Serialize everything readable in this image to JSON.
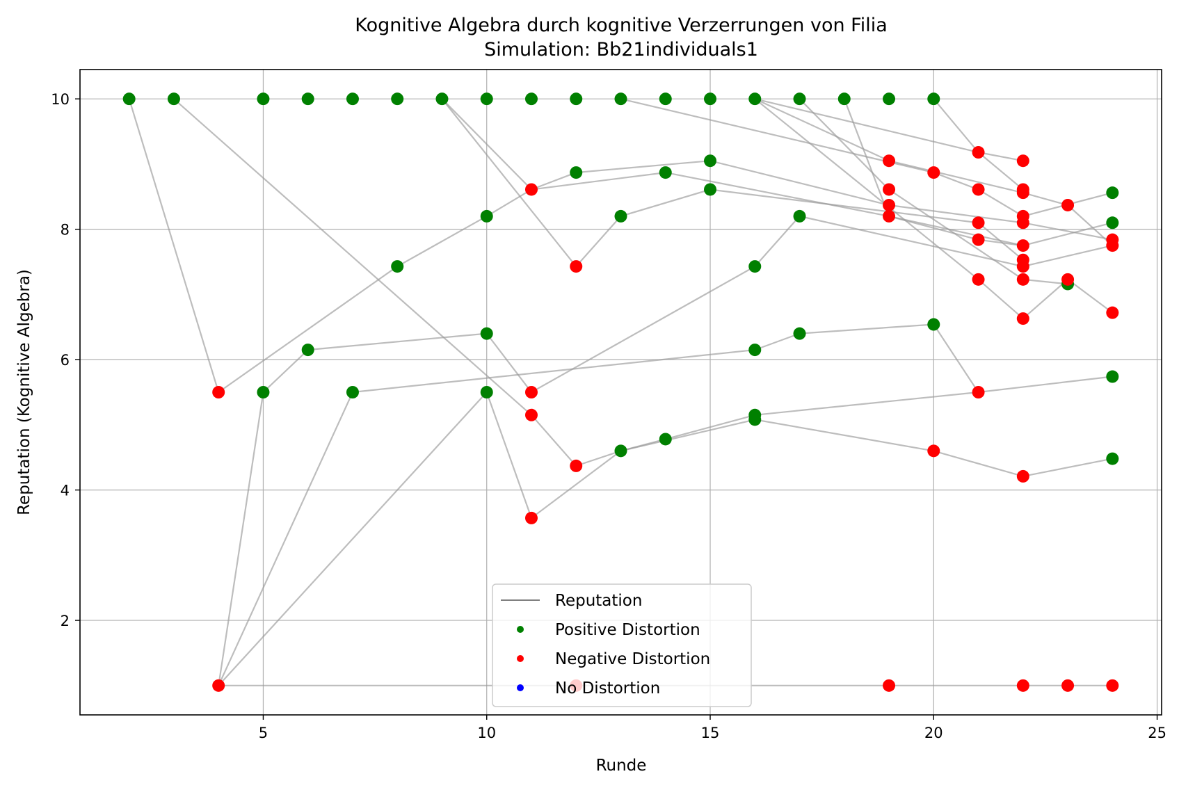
{
  "chart_data": {
    "type": "scatter",
    "title": "Kognitive Algebra durch kognitive Verzerrungen von Filia",
    "subtitle": "Simulation: Bb21individuals1",
    "xlabel": "Runde",
    "ylabel": "Reputation (Kognitive Algebra)",
    "xlim": [
      0.9,
      25.1
    ],
    "ylim": [
      0.55,
      10.45
    ],
    "xticks": [
      5,
      10,
      15,
      20,
      25
    ],
    "yticks": [
      2,
      4,
      6,
      8,
      10
    ],
    "grid": true,
    "legend_position": "lower center",
    "legend": [
      {
        "label": "Reputation",
        "kind": "line",
        "color": "#808080"
      },
      {
        "label": "Positive Distortion",
        "kind": "marker",
        "color": "#008000"
      },
      {
        "label": "Negative Distortion",
        "kind": "marker",
        "color": "#ff0000"
      },
      {
        "label": "No Distortion",
        "kind": "marker",
        "color": "#0000ff"
      }
    ],
    "colors": {
      "positive": "#008000",
      "negative": "#ff0000",
      "none": "#0000ff",
      "reputation": "#808080"
    },
    "series": [
      {
        "points": [
          [
            2,
            10
          ],
          [
            4,
            5.5
          ],
          [
            8,
            7.43
          ],
          [
            10,
            8.2
          ],
          [
            11,
            8.61
          ],
          [
            14,
            8.87
          ],
          [
            19,
            8.2
          ],
          [
            21,
            7.84
          ],
          [
            22,
            7.75
          ],
          [
            24,
            8.1
          ]
        ]
      },
      {
        "points": [
          [
            3,
            10
          ],
          [
            11,
            5.15
          ],
          [
            12,
            4.37
          ],
          [
            13,
            4.6
          ],
          [
            14,
            4.78
          ],
          [
            16,
            5.15
          ],
          [
            21,
            5.5
          ],
          [
            24,
            5.74
          ]
        ]
      },
      {
        "points": [
          [
            4,
            1
          ],
          [
            5,
            5.5
          ],
          [
            6,
            6.15
          ],
          [
            10,
            6.4
          ],
          [
            11,
            5.5
          ],
          [
            16,
            7.43
          ],
          [
            17,
            8.2
          ],
          [
            22,
            7.43
          ],
          [
            24,
            7.75
          ]
        ]
      },
      {
        "points": [
          [
            4,
            1
          ],
          [
            7,
            5.5
          ],
          [
            16,
            6.15
          ],
          [
            17,
            6.4
          ],
          [
            20,
            6.54
          ],
          [
            21,
            5.5
          ]
        ]
      },
      {
        "points": [
          [
            4,
            1
          ],
          [
            10,
            5.5
          ],
          [
            11,
            3.57
          ],
          [
            13,
            4.6
          ],
          [
            16,
            5.08
          ],
          [
            20,
            4.6
          ],
          [
            22,
            4.21
          ],
          [
            24,
            4.48
          ]
        ]
      },
      {
        "points": [
          [
            4,
            1
          ],
          [
            12,
            1
          ],
          [
            19,
            1
          ],
          [
            22,
            1
          ],
          [
            23,
            1
          ],
          [
            24,
            1
          ]
        ]
      },
      {
        "points": [
          [
            9,
            10
          ],
          [
            11,
            8.61
          ],
          [
            12,
            8.87
          ],
          [
            15,
            9.05
          ],
          [
            19,
            8.37
          ],
          [
            22,
            8.1
          ],
          [
            24,
            7.84
          ]
        ]
      },
      {
        "points": [
          [
            9,
            10
          ],
          [
            12,
            7.43
          ],
          [
            13,
            8.2
          ],
          [
            15,
            8.61
          ],
          [
            21,
            8.1
          ],
          [
            22,
            7.53
          ]
        ]
      },
      {
        "points": [
          [
            13,
            10
          ],
          [
            20,
            8.87
          ],
          [
            21,
            8.61
          ],
          [
            22,
            8.2
          ],
          [
            24,
            8.56
          ]
        ]
      },
      {
        "points": [
          [
            16,
            10
          ],
          [
            19,
            9.05
          ],
          [
            22,
            8.56
          ],
          [
            23,
            8.37
          ],
          [
            24,
            7.75
          ]
        ]
      },
      {
        "points": [
          [
            16,
            10
          ],
          [
            21,
            7.23
          ],
          [
            22,
            6.63
          ],
          [
            23,
            7.23
          ],
          [
            24,
            6.72
          ]
        ]
      },
      {
        "points": [
          [
            17,
            10
          ],
          [
            19,
            8.61
          ],
          [
            22,
            7.23
          ],
          [
            23,
            7.16
          ]
        ]
      },
      {
        "points": [
          [
            18,
            10
          ],
          [
            19,
            8.2
          ],
          [
            22,
            7.75
          ]
        ]
      },
      {
        "points": [
          [
            20,
            10
          ],
          [
            21,
            9.18
          ],
          [
            22,
            8.61
          ]
        ]
      },
      {
        "points": [
          [
            16,
            10
          ],
          [
            21,
            9.18
          ],
          [
            22,
            9.05
          ]
        ]
      }
    ],
    "positive_points": [
      [
        2,
        10
      ],
      [
        3,
        10
      ],
      [
        5,
        10
      ],
      [
        6,
        10
      ],
      [
        7,
        10
      ],
      [
        8,
        10
      ],
      [
        9,
        10
      ],
      [
        10,
        10
      ],
      [
        11,
        10
      ],
      [
        12,
        10
      ],
      [
        13,
        10
      ],
      [
        14,
        10
      ],
      [
        15,
        10
      ],
      [
        16,
        10
      ],
      [
        17,
        10
      ],
      [
        18,
        10
      ],
      [
        19,
        10
      ],
      [
        20,
        10
      ],
      [
        5,
        5.5
      ],
      [
        6,
        6.15
      ],
      [
        7,
        5.5
      ],
      [
        8,
        7.43
      ],
      [
        10,
        8.2
      ],
      [
        10,
        6.4
      ],
      [
        10,
        5.5
      ],
      [
        12,
        8.87
      ],
      [
        13,
        8.2
      ],
      [
        13,
        4.6
      ],
      [
        14,
        8.87
      ],
      [
        14,
        4.78
      ],
      [
        15,
        9.05
      ],
      [
        15,
        8.61
      ],
      [
        16,
        7.43
      ],
      [
        16,
        6.15
      ],
      [
        16,
        5.15
      ],
      [
        16,
        5.08
      ],
      [
        17,
        8.2
      ],
      [
        17,
        6.4
      ],
      [
        20,
        6.54
      ],
      [
        23,
        7.16
      ],
      [
        24,
        8.56
      ],
      [
        24,
        8.1
      ],
      [
        24,
        5.74
      ],
      [
        24,
        4.48
      ]
    ],
    "negative_points": [
      [
        4,
        5.5
      ],
      [
        4,
        1
      ],
      [
        11,
        8.61
      ],
      [
        11,
        5.5
      ],
      [
        11,
        5.15
      ],
      [
        11,
        3.57
      ],
      [
        12,
        7.43
      ],
      [
        12,
        4.37
      ],
      [
        12,
        1
      ],
      [
        19,
        9.05
      ],
      [
        19,
        8.61
      ],
      [
        19,
        8.37
      ],
      [
        19,
        8.2
      ],
      [
        19,
        1
      ],
      [
        20,
        8.87
      ],
      [
        20,
        4.6
      ],
      [
        21,
        9.18
      ],
      [
        21,
        8.61
      ],
      [
        21,
        8.1
      ],
      [
        21,
        7.84
      ],
      [
        21,
        7.23
      ],
      [
        21,
        5.5
      ],
      [
        22,
        9.05
      ],
      [
        22,
        8.61
      ],
      [
        22,
        8.56
      ],
      [
        22,
        8.2
      ],
      [
        22,
        8.1
      ],
      [
        22,
        7.75
      ],
      [
        22,
        7.53
      ],
      [
        22,
        7.43
      ],
      [
        22,
        7.23
      ],
      [
        22,
        6.63
      ],
      [
        22,
        4.21
      ],
      [
        22,
        1
      ],
      [
        23,
        8.37
      ],
      [
        23,
        7.23
      ],
      [
        23,
        1
      ],
      [
        24,
        7.84
      ],
      [
        24,
        7.75
      ],
      [
        24,
        6.72
      ],
      [
        24,
        1
      ]
    ]
  }
}
